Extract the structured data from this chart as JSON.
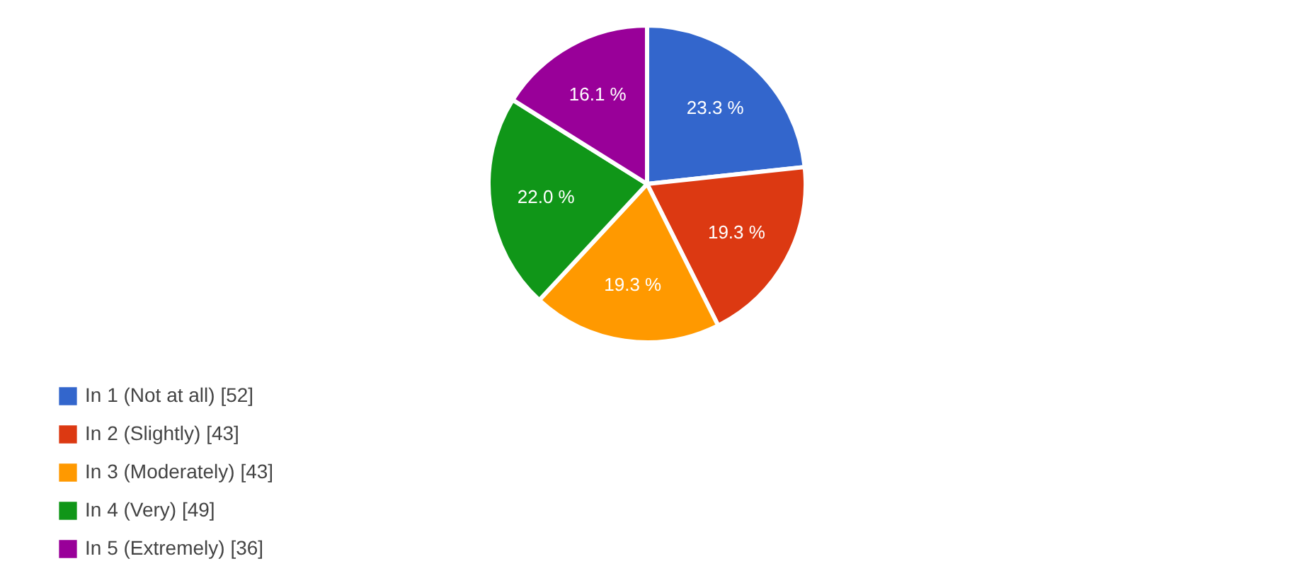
{
  "chart_data": {
    "type": "pie",
    "categories": [
      "In 1 (Not at all) [52]",
      "In 2 (Slightly) [43]",
      "In 3 (Moderately) [43]",
      "In 4 (Very) [49]",
      "In 5 (Extremely) [36]"
    ],
    "values": [
      23.3,
      19.3,
      19.3,
      22.0,
      16.1
    ],
    "value_labels": [
      "23.3 %",
      "19.3 %",
      "19.3 %",
      "22.0 %",
      "16.1 %"
    ],
    "colors": [
      "#3366cc",
      "#dc3912",
      "#ff9900",
      "#109618",
      "#990099"
    ],
    "legend": "bottom left"
  }
}
